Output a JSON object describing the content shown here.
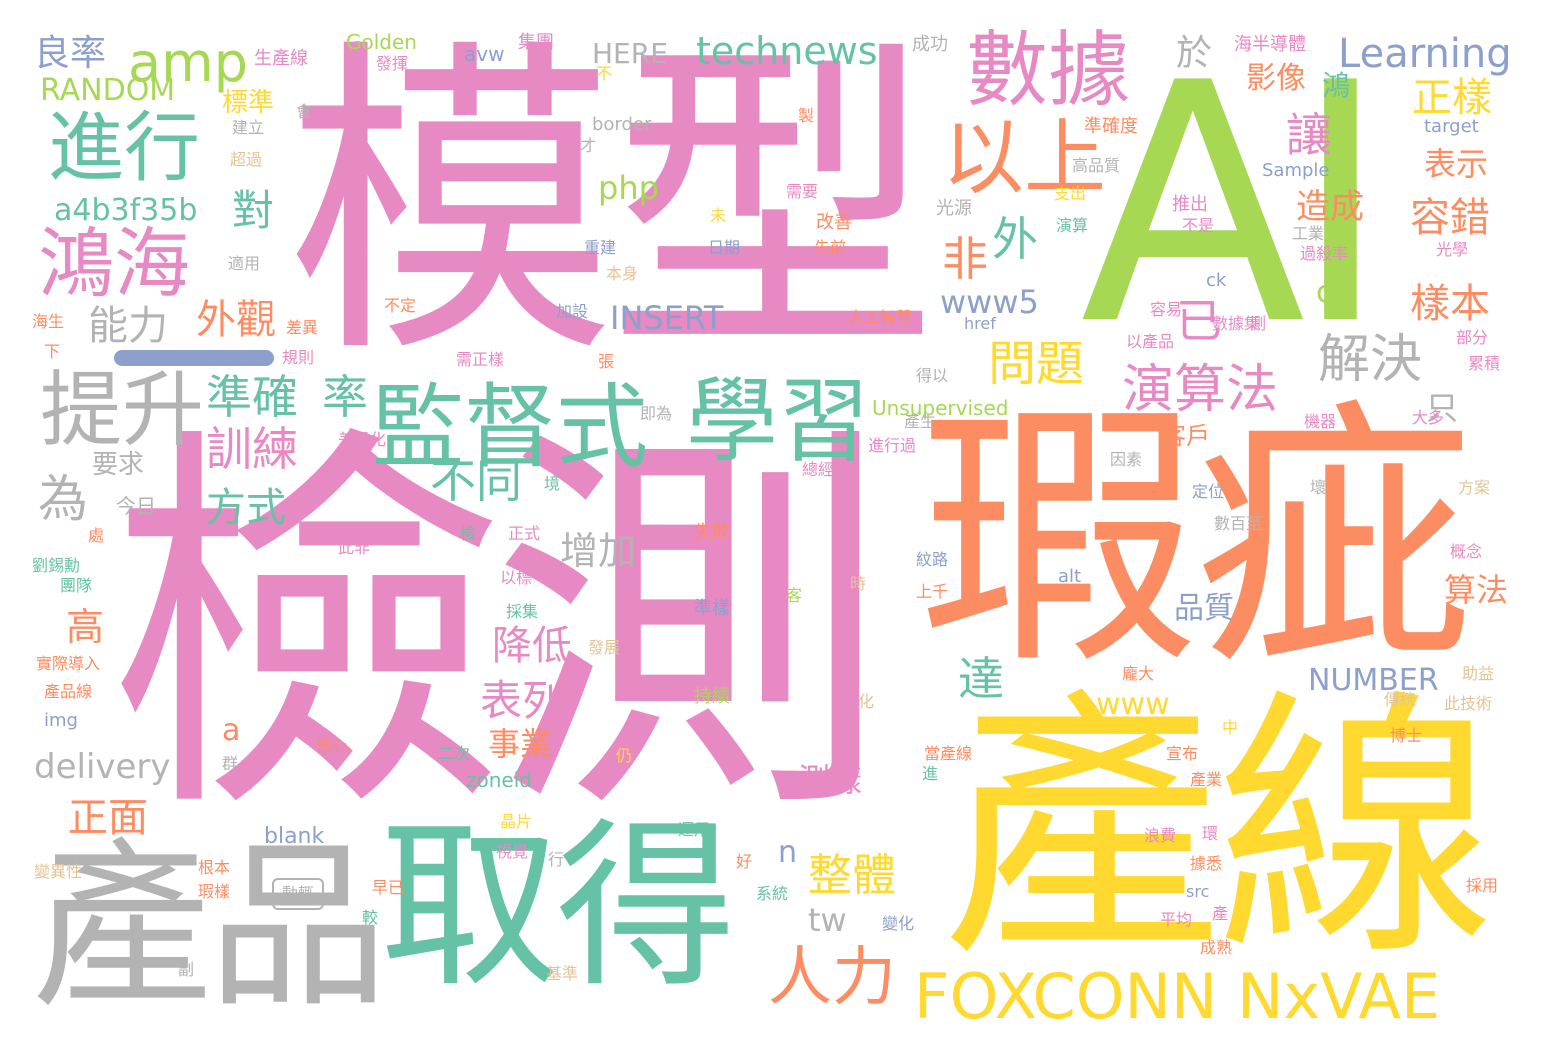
{
  "palette": {
    "pink": "#e78ac3",
    "green": "#a6d854",
    "orange": "#fc8d62",
    "teal": "#66c2a5",
    "yellow": "#ffd92f",
    "gray": "#b3b3b3",
    "blue": "#8da0cb",
    "tan": "#e5c494"
  },
  "words": {
    "w_model": "模型",
    "w_ai": "AI",
    "w_detect": "檢測",
    "w_defect": "瑕疵",
    "w_line": "產線",
    "w_product": "產品",
    "w_get": "取得",
    "w_supervised": "監督式",
    "w_learning_zh": "學習",
    "w_data": "數據",
    "w_above": "以上",
    "w_progress": "進行",
    "w_foxconn_zh": "鴻海",
    "w_improve": "提升",
    "w_foxconn_nxvae": "FOXCONN NxVAE",
    "w_manpower": "人力",
    "w_amp": "amp",
    "w_technews": "technews",
    "w_learning_en": "Learning",
    "w_yield": "良率",
    "w_random": "RANDOM",
    "w_standard": "標準",
    "w_golden": "Golden",
    "w_avw": "avw",
    "w_group": "集團",
    "w_here": "HERE",
    "w_success": "成功",
    "w_semi": "海半導體",
    "w_production_line": "生產線",
    "w_exert": "發揮",
    "w_at": "於",
    "w_image": "影像",
    "w_normal_sample": "正樣",
    "w_hong": "鴻",
    "w_let": "讓",
    "w_border": "border",
    "w_target": "target",
    "w_sample": "Sample",
    "w_express": "表示",
    "w_cause": "造成",
    "w_tolerance": "容錯",
    "w_sample_book": "樣本",
    "w_a4b": "a4b3f35b",
    "w_php": "php",
    "w_pair": "對",
    "w_outside": "外",
    "w_non": "非",
    "w_already": "已",
    "w_www5": "www5",
    "w_capability": "能力",
    "w_appearance": "外觀",
    "w_insert": "INSERT",
    "w_problem": "問題",
    "w_algorithm": "演算法",
    "w_solve": "解決",
    "w_only": "只",
    "w_accurate": "準確",
    "w_rate": "率",
    "w_train": "訓練",
    "w_for": "為",
    "w_requirement": "要求",
    "w_different": "不同",
    "w_method": "方式",
    "w_today": "今日",
    "w_increase": "增加",
    "w_customer": "客戶",
    "w_high": "高",
    "w_reduce": "降低",
    "w_quality": "品質",
    "w_calc": "算法",
    "w_reach": "達",
    "w_list": "表列",
    "w_business": "事業",
    "w_number": "NUMBER",
    "w_www": "www",
    "w_a": "a",
    "w_delivery": "delivery",
    "w_zoneid": "zoneid",
    "w_front": "正面",
    "w_test_sample": "測樣",
    "w_whole": "整體",
    "w_n": "n",
    "w_tw": "tw",
    "w_blank": "blank",
    "w_cb": "cb",
    "w_unsupervised": "Unsupervised",
    "w_ai_sm": "人工智慧",
    "w_announce": "宣布",
    "w_industry": "產業",
    "w_traditional": "傳統",
    "w_doctor": "博士",
    "w_this_tech": "此技術",
    "w_mature": "成熟",
    "w_adopt": "採用",
    "w_benefit": "助益",
    "w_accuracy": "準確度",
    "w_high_quality": "高品質",
    "w_support": "支出",
    "w_compute": "演算",
    "w_launch": "推出",
    "w_not_is": "不是",
    "w_industrial": "工業",
    "w_overkill": "過殺率",
    "w_optics": "光學",
    "w_light": "光源",
    "w_improve_sm": "改善",
    "w_need": "需要",
    "w_previous": "先前",
    "w_date": "日期",
    "w_rebuild": "重建",
    "w_itself": "本身",
    "w_add": "加設",
    "w_uncertain": "不定",
    "w_apply": "適用",
    "w_build": "建立",
    "w_exceed": "超過",
    "w_will": "會",
    "w_only_then": "才",
    "w_not": "不",
    "w_make": "製",
    "w_not_yet": "未",
    "w_ck": "ck",
    "w_easy": "容易",
    "w_dataset": "數據集",
    "w_measure": "測",
    "w_section": "部分",
    "w_accumulate": "累積",
    "w_href": "href",
    "w_from_prod": "以產品",
    "w_machine": "機器",
    "w_majority": "大多",
    "w_factor": "因素",
    "w_locate": "定位",
    "w_bad": "壞",
    "w_hundreds": "數百至",
    "w_plan": "方案",
    "w_concept": "概念",
    "w_alt": "alt",
    "w_upper": "上千",
    "w_texture": "紋路",
    "w_get_sm": "得以",
    "w_prod_sm": "產生",
    "w_process": "進行過",
    "w_diff": "差異",
    "w_differentiation": "差異化",
    "w_gm": "總經理",
    "w_hai": "海生",
    "w_rule": "規則",
    "w_need_pos": "需正樣",
    "w_zhang": "張",
    "w_env": "境",
    "w_is_not": "此非",
    "w_formal": "正式",
    "w_by_standard": "以標",
    "w_gather": "採集",
    "w_fail": "失敗",
    "w_quasi": "準樣",
    "w_when": "時",
    "w_guest": "客",
    "w_dev": "發展",
    "w_continue": "持續",
    "w_detect_sm": "檢",
    "w_liu": "劉錫勳",
    "w_team": "團隊",
    "w_place": "處",
    "w_reality": "實際導入",
    "w_prod_line_sm": "產品線",
    "w_img": "img",
    "w_core": "核心",
    "w_twice": "二次",
    "w_still": "仍",
    "w_group_sm": "群",
    "w_big": "龐大",
    "w_change": "化",
    "w_mid": "中",
    "w_when_line": "當產線",
    "w_enter": "進",
    "w_chip": "晶片",
    "w_vision": "視覺",
    "w_apply2": "運用",
    "w_line_row": "行",
    "w_good": "好",
    "w_system": "系統",
    "w_change2": "變化",
    "w_waste": "浪費",
    "w_ring": "環",
    "w_data_base": "據悉",
    "w_src": "src",
    "w_average": "平均",
    "w_production": "產",
    "w_root": "根本",
    "w_defect_sm": "瑕樣",
    "w_move": "動輒",
    "w_early": "早已",
    "w_compare": "較",
    "w_baseline": "基準",
    "w_variant": "變異性",
    "w_deputy": "副",
    "w_this_is": "即為",
    "w_mirror": "鏡"
  }
}
